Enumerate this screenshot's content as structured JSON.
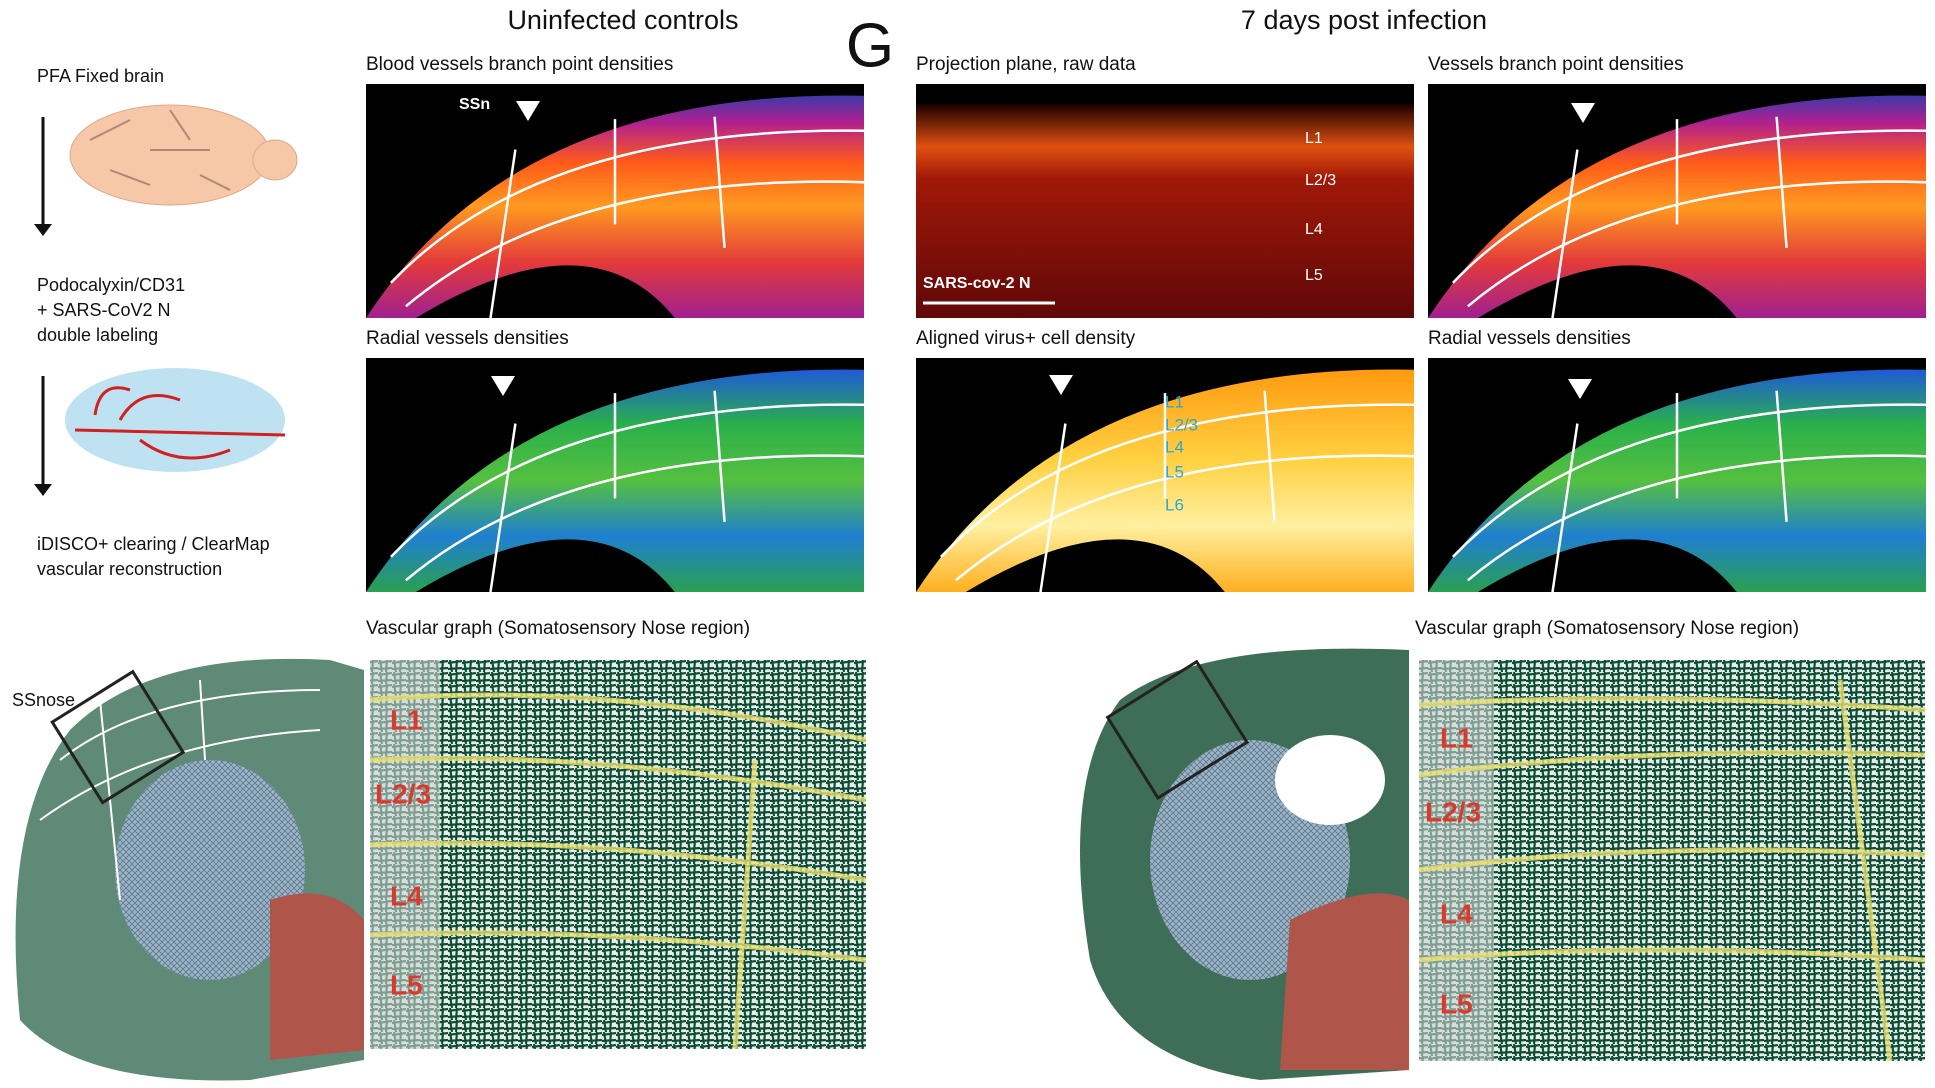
{
  "headings": {
    "left": "Uninfected controls",
    "panel_letter": "G",
    "right": "7 days post infection"
  },
  "workflow": {
    "step1": "PFA Fixed brain",
    "step2": [
      "Podocalyxin/CD31",
      "+ SARS-CoV2 N",
      "double labeling"
    ],
    "step3": [
      "iDISCO+ clearing / ClearMap",
      "vascular reconstruction"
    ]
  },
  "panels": [
    {
      "title": "Blood vessels branch point densities",
      "labels": [
        "SSn"
      ]
    },
    {
      "title": "Radial vessels densities"
    },
    {
      "title": "Projection plane, raw data",
      "labels": [
        "L1",
        "L2/3",
        "L4",
        "L5",
        "SARS-cov-2 N"
      ]
    },
    {
      "title": "Aligned virus+ cell density",
      "labels": [
        "L1",
        "L2/3",
        "L4",
        "L5",
        "L6"
      ]
    },
    {
      "title": "Vessels branch point densities"
    },
    {
      "title": "Radial vessels densities"
    }
  ],
  "graphs": [
    {
      "title": "Vascular graph (Somatosensory Nose region)",
      "region_label": "SSnose",
      "layers": [
        "L1",
        "L2/3",
        "L4",
        "L5"
      ]
    },
    {
      "title": "Vascular graph (Somatosensory Nose region)",
      "layers": [
        "L1",
        "L2/3",
        "L4",
        "L5"
      ]
    }
  ]
}
